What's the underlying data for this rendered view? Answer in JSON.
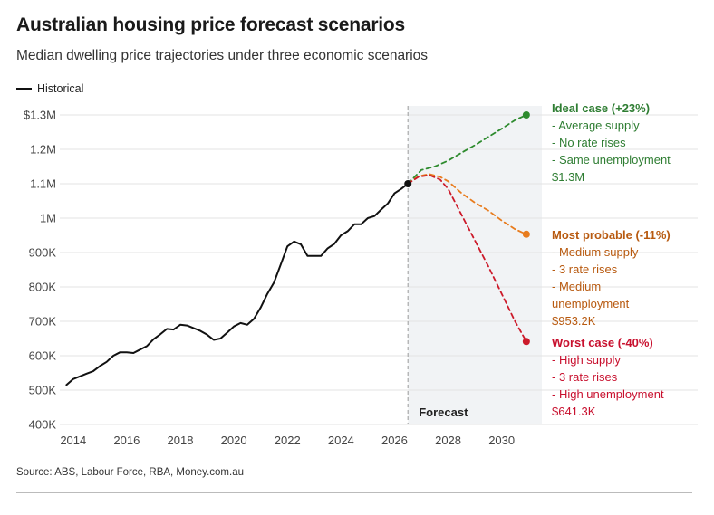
{
  "header": {
    "title": "Australian housing price forecast scenarios",
    "subtitle": "Median dwelling price trajectories under three economic scenarios"
  },
  "legend": {
    "historical_label": "Historical"
  },
  "footer": {
    "source": "Source: ABS, Labour Force, RBA, Money.com.au"
  },
  "colors": {
    "historical": "#111111",
    "ideal": "#2e8b2e",
    "probable": "#e87c1e",
    "worst": "#cc1a2a",
    "forecast_band": "#f1f3f5",
    "divider": "#aaaaaa",
    "gridline": "#e3e3e3"
  },
  "chart_data": {
    "type": "line",
    "title": "Australian housing price forecast scenarios",
    "subtitle": "Median dwelling price trajectories under three economic scenarios",
    "xlabel": "",
    "ylabel": "",
    "xlim": [
      2013.5,
      2031.5
    ],
    "ylim": [
      400000,
      1300000
    ],
    "grid": true,
    "legend_position": "top-left",
    "x_ticks": [
      2014,
      2016,
      2018,
      2020,
      2022,
      2024,
      2026,
      2028,
      2030
    ],
    "x_tick_labels": [
      "2014",
      "2016",
      "2018",
      "2020",
      "2022",
      "2024",
      "2026",
      "2028",
      "2030"
    ],
    "y_ticks": [
      400000,
      500000,
      600000,
      700000,
      800000,
      900000,
      1000000,
      1100000,
      1200000,
      1300000
    ],
    "y_tick_labels": [
      "400K",
      "500K",
      "600K",
      "700K",
      "800K",
      "900K",
      "1M",
      "1.1M",
      "1.2M",
      "$1.3M"
    ],
    "forecast_region": {
      "start": 2026.5,
      "end": 2031.5,
      "label": "Forecast"
    },
    "series": [
      {
        "name": "Historical",
        "style": "solid",
        "color": "#111111",
        "x": [
          2013.75,
          2014.0,
          2014.25,
          2014.5,
          2014.75,
          2015.0,
          2015.25,
          2015.5,
          2015.75,
          2016.0,
          2016.25,
          2016.5,
          2016.75,
          2017.0,
          2017.25,
          2017.5,
          2017.75,
          2018.0,
          2018.25,
          2018.5,
          2018.75,
          2019.0,
          2019.25,
          2019.5,
          2019.75,
          2020.0,
          2020.25,
          2020.5,
          2020.75,
          2021.0,
          2021.25,
          2021.5,
          2021.75,
          2022.0,
          2022.25,
          2022.5,
          2022.75,
          2023.0,
          2023.25,
          2023.5,
          2023.75,
          2024.0,
          2024.25,
          2024.5,
          2024.75,
          2025.0,
          2025.25,
          2025.5,
          2025.75,
          2026.0,
          2026.25,
          2026.5
        ],
        "values": [
          515000,
          532000,
          540000,
          548000,
          555000,
          570000,
          582000,
          600000,
          610000,
          610000,
          608000,
          618000,
          628000,
          648000,
          662000,
          678000,
          676000,
          690000,
          688000,
          680000,
          672000,
          661000,
          646000,
          650000,
          667000,
          685000,
          695000,
          690000,
          707000,
          740000,
          780000,
          813000,
          865000,
          918000,
          932000,
          924000,
          890000,
          890000,
          890000,
          912000,
          925000,
          950000,
          962000,
          982000,
          982000,
          1000000,
          1006000,
          1025000,
          1043000,
          1072000,
          1085000,
          1100000
        ]
      },
      {
        "name": "Ideal case (+23%)",
        "style": "dashed",
        "color": "#2e8b2e",
        "x": [
          2026.5,
          2027.0,
          2027.5,
          2028.0,
          2028.5,
          2029.0,
          2029.5,
          2030.0,
          2030.5,
          2030.92
        ],
        "values": [
          1100000,
          1140000,
          1150000,
          1167000,
          1190000,
          1212000,
          1236000,
          1260000,
          1285000,
          1300000
        ]
      },
      {
        "name": "Most probable (-11%)",
        "style": "dashed",
        "color": "#e87c1e",
        "x": [
          2026.5,
          2026.9,
          2027.3,
          2027.7,
          2028.0,
          2028.5,
          2029.0,
          2029.5,
          2030.0,
          2030.5,
          2030.92
        ],
        "values": [
          1100000,
          1122000,
          1128000,
          1120000,
          1107000,
          1073000,
          1045000,
          1022000,
          993000,
          968000,
          953200
        ]
      },
      {
        "name": "Worst case (-40%)",
        "style": "dashed",
        "color": "#cc1a2a",
        "x": [
          2026.5,
          2026.9,
          2027.3,
          2027.7,
          2028.0,
          2028.5,
          2029.0,
          2029.5,
          2030.0,
          2030.5,
          2030.92
        ],
        "values": [
          1100000,
          1120000,
          1125000,
          1112000,
          1085000,
          1010000,
          935000,
          860000,
          780000,
          700000,
          641300
        ]
      }
    ],
    "annotations": [
      {
        "series": "Ideal case (+23%)",
        "color": "#2e7d32",
        "heading": "Ideal case (+23%)",
        "lines": [
          "- Average supply",
          "- No rate rises",
          "- Same unemployment",
          "$1.3M"
        ]
      },
      {
        "series": "Most probable (-11%)",
        "color": "#b85a10",
        "heading": "Most probable (-11%)",
        "lines": [
          "- Medium supply",
          "- 3 rate rises",
          "- Medium",
          "unemployment",
          "$953.2K"
        ]
      },
      {
        "series": "Worst case (-40%)",
        "color": "#c8102e",
        "heading": "Worst case (-40%)",
        "lines": [
          "- High supply",
          "- 3 rate rises",
          "- High unemployment",
          "$641.3K"
        ]
      }
    ]
  }
}
